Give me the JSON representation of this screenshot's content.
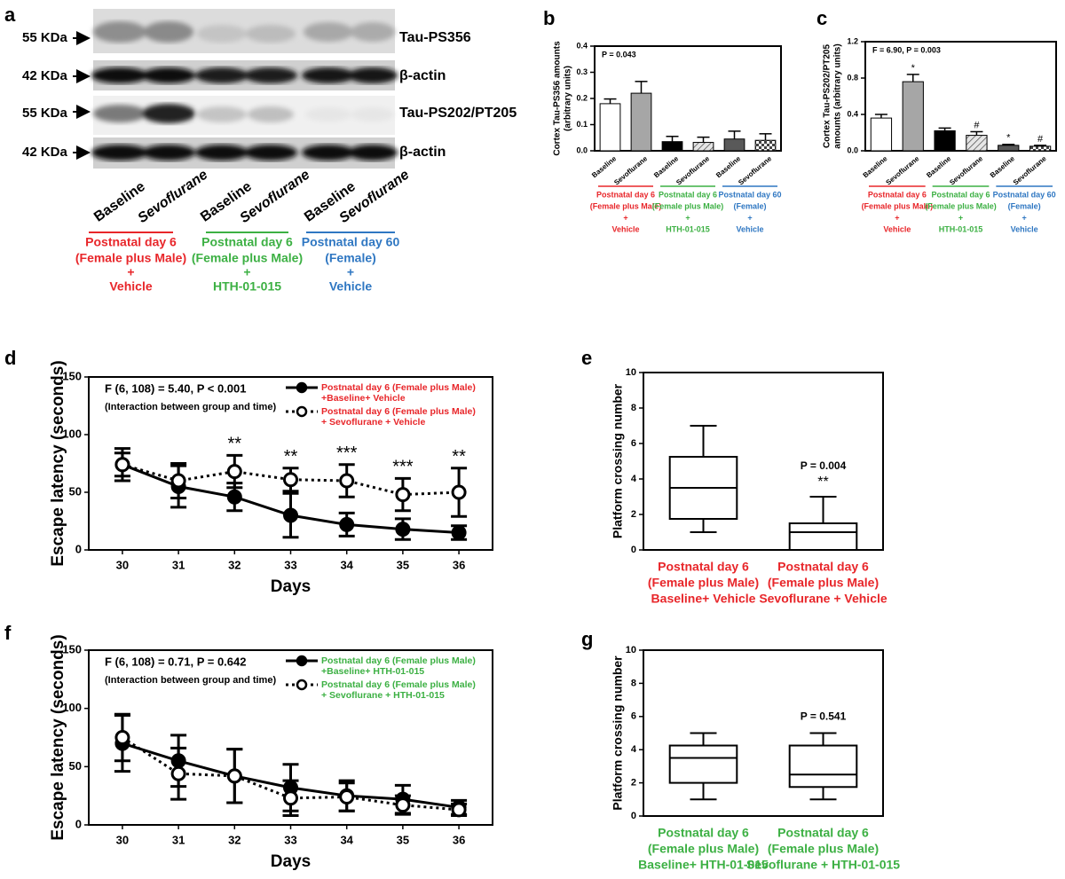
{
  "blot": {
    "label": "a",
    "rows": [
      {
        "size": "55 KDa",
        "protein": "Tau-PS356"
      },
      {
        "size": "42 KDa",
        "protein": "β-actin"
      },
      {
        "size": "55 KDa",
        "protein": "Tau-PS202/PT205"
      },
      {
        "size": "42 KDa",
        "protein": "β-actin"
      }
    ],
    "lanes": [
      "Baseline",
      "Sevoflurane",
      "Baseline",
      "Sevoflurane",
      "Baseline",
      "Sevoflurane"
    ],
    "groups": [
      {
        "lines": [
          "Postnatal day 6",
          "(Female plus Male)",
          "+",
          "Vehicle"
        ],
        "color": "#e8262a"
      },
      {
        "lines": [
          "Postnatal day 6",
          "(Female plus Male)",
          "+",
          "HTH-01-015"
        ],
        "color": "#3cb043"
      },
      {
        "lines": [
          "Postnatal day 60",
          "(Female)",
          "+",
          "Vehicle"
        ],
        "color": "#2f77c2"
      }
    ]
  },
  "chart_data": [
    {
      "type": "bar",
      "label": "b",
      "ylabel": [
        "Cortex Tau-PS356 amounts",
        "(arbitrary units)"
      ],
      "annotation": "P = 0.043",
      "categories": [
        "Baseline",
        "Sevoflurane",
        "Baseline",
        "Sevoflurane",
        "Baseline",
        "Sevoflurane"
      ],
      "values": [
        0.18,
        0.22,
        0.035,
        0.032,
        0.045,
        0.04
      ],
      "errors": [
        0.018,
        0.045,
        0.02,
        0.02,
        0.03,
        0.025
      ],
      "colors": [
        "#ffffff",
        "#a6a6a6",
        "#000000",
        "#d9d9d9",
        "#595959",
        "#ffffff"
      ],
      "patterns": [
        "none",
        "none",
        "none",
        "diagonal",
        "none",
        "checker"
      ],
      "ylim": [
        0,
        0.4
      ],
      "yticks": [
        {
          "value": 0,
          "label": "0.0"
        },
        0.1,
        0.2,
        0.3,
        0.4
      ],
      "groups": [
        {
          "lines": [
            "Postnatal day 6",
            "(Female plus Male)",
            "+",
            "Vehicle"
          ],
          "color": "#e8262a"
        },
        {
          "lines": [
            "Postnatal day 6",
            "(Female plus Male)",
            "+",
            "HTH-01-015"
          ],
          "color": "#3cb043"
        },
        {
          "lines": [
            "Postnatal day 60",
            "(Female)",
            "+",
            "Vehicle"
          ],
          "color": "#2f77c2"
        }
      ]
    },
    {
      "type": "bar",
      "label": "c",
      "ylabel": [
        "Cortex Tau-PS202/PT205",
        "amounts (arbitrary units)"
      ],
      "annotation": "F = 6.90, P = 0.003",
      "categories": [
        "Baseline",
        "Sevoflurane",
        "Baseline",
        "Sevoflurane",
        "Baseline",
        "Sevoflurane"
      ],
      "values": [
        0.36,
        0.76,
        0.22,
        0.17,
        0.06,
        0.05
      ],
      "errors": [
        0.04,
        0.08,
        0.03,
        0.04,
        0.01,
        0.01
      ],
      "markers": [
        null,
        "*",
        null,
        "#",
        "*",
        "#"
      ],
      "colors": [
        "#ffffff",
        "#a6a6a6",
        "#000000",
        "#d9d9d9",
        "#595959",
        "#ffffff"
      ],
      "patterns": [
        "none",
        "none",
        "none",
        "diagonal",
        "none",
        "checker"
      ],
      "ylim": [
        0,
        1.2
      ],
      "yticks": [
        {
          "value": 0,
          "label": "0.0"
        },
        0.4,
        0.8,
        1.2
      ],
      "groups": [
        {
          "lines": [
            "Postnatal day 6",
            "(Female plus Male)",
            "+",
            "Vehicle"
          ],
          "color": "#e8262a"
        },
        {
          "lines": [
            "Postnatal day 6",
            "(Female plus Male)",
            "+",
            "HTH-01-015"
          ],
          "color": "#3cb043"
        },
        {
          "lines": [
            "Postnatal day 60",
            "(Female)",
            "+",
            "Vehicle"
          ],
          "color": "#2f77c2"
        }
      ]
    },
    {
      "type": "line",
      "label": "d",
      "ylabel": [
        "Escape latency (seconds)"
      ],
      "xlabel": "Days",
      "annotation": [
        "F (6, 108) = 5.40, P < 0.001",
        "(Interaction between group and time)"
      ],
      "x": [
        30,
        31,
        32,
        33,
        34,
        35,
        36
      ],
      "xlim": [
        29.4,
        36.6
      ],
      "xticks": [
        30,
        31,
        32,
        33,
        34,
        35,
        36
      ],
      "ylim": [
        0,
        150
      ],
      "yticks": [
        0,
        50,
        100,
        150
      ],
      "legend_color": "#e8262a",
      "series": [
        {
          "name": [
            "Postnatal day 6 (Female plus Male)",
            "+Baseline+ Vehicle"
          ],
          "color": "#000000",
          "dash": "solid",
          "marker": "filled",
          "values": [
            74,
            55,
            46,
            30,
            22,
            18,
            15
          ],
          "errors": [
            14,
            18,
            12,
            19,
            10,
            9,
            6
          ]
        },
        {
          "name": [
            "Postnatal day 6 (Female plus Male)",
            "+ Sevoflurane + Vehicle"
          ],
          "color": "#000000",
          "dash": "dotted",
          "marker": "open",
          "values": [
            74,
            60,
            68,
            61,
            60,
            48,
            50
          ],
          "errors": [
            10,
            15,
            14,
            10,
            14,
            14,
            21
          ]
        }
      ],
      "markers": [
        null,
        null,
        "**",
        "**",
        "***",
        "***",
        "**"
      ]
    },
    {
      "type": "box",
      "label": "e",
      "ylabel": [
        "Platform crossing number"
      ],
      "annotation": "P = 0.004",
      "marker": "**",
      "ylim": [
        0,
        10
      ],
      "yticks": [
        0,
        2,
        4,
        6,
        8,
        10
      ],
      "label_color": "#e8262a",
      "categories": [
        [
          "Postnatal day 6",
          "(Female plus Male)",
          "Baseline+ Vehicle"
        ],
        [
          "Postnatal day 6",
          "(Female plus Male)",
          "Sevoflurane + Vehicle"
        ]
      ],
      "boxes": [
        {
          "min": 1,
          "q1": 1.75,
          "median": 3.5,
          "q3": 5.25,
          "max": 7
        },
        {
          "min": 0,
          "q1": 0,
          "median": 1,
          "q3": 1.5,
          "max": 3
        }
      ]
    },
    {
      "type": "line",
      "label": "f",
      "ylabel": [
        "Escape latency (seconds)"
      ],
      "xlabel": "Days",
      "annotation": [
        "F (6, 108) = 0.71, P = 0.642",
        "(Interaction between group and time)"
      ],
      "x": [
        30,
        31,
        32,
        33,
        34,
        35,
        36
      ],
      "xlim": [
        29.4,
        36.6
      ],
      "xticks": [
        30,
        31,
        32,
        33,
        34,
        35,
        36
      ],
      "ylim": [
        0,
        150
      ],
      "yticks": [
        0,
        50,
        100,
        150
      ],
      "legend_color": "#3cb043",
      "series": [
        {
          "name": [
            "Postnatal day 6 (Female plus Male)",
            "+Baseline+ HTH-01-015"
          ],
          "color": "#000000",
          "dash": "solid",
          "marker": "filled",
          "values": [
            70,
            55,
            42,
            32,
            25,
            22,
            15
          ],
          "errors": [
            24,
            22,
            23,
            20,
            13,
            12,
            6
          ]
        },
        {
          "name": [
            "Postnatal day 6 (Female plus Male)",
            "+ Sevoflurane + HTH-01-015"
          ],
          "color": "#000000",
          "dash": "dotted",
          "marker": "open",
          "values": [
            75,
            44,
            42,
            23,
            24,
            17,
            13
          ],
          "errors": [
            20,
            22,
            23,
            15,
            12,
            8,
            5
          ]
        }
      ]
    },
    {
      "type": "box",
      "label": "g",
      "ylabel": [
        "Platform crossing number"
      ],
      "annotation": "P = 0.541",
      "ylim": [
        0,
        10
      ],
      "yticks": [
        0,
        2,
        4,
        6,
        8,
        10
      ],
      "label_color": "#3cb043",
      "categories": [
        [
          "Postnatal day 6",
          "(Female plus Male)",
          "Baseline+ HTH-01-015"
        ],
        [
          "Postnatal day 6",
          "(Female plus Male)",
          "Sevoflurane + HTH-01-015"
        ]
      ],
      "boxes": [
        {
          "min": 1,
          "q1": 2,
          "median": 3.5,
          "q3": 4.25,
          "max": 5
        },
        {
          "min": 1,
          "q1": 1.75,
          "median": 2.5,
          "q3": 4.25,
          "max": 5
        }
      ]
    }
  ]
}
